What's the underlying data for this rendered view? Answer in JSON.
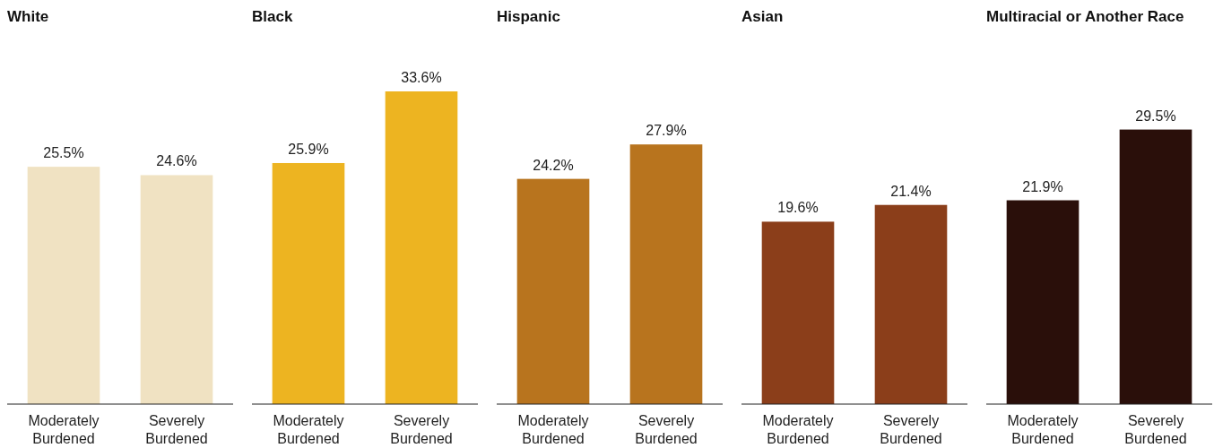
{
  "chart_data": [
    {
      "type": "bar",
      "title": "White",
      "categories": [
        "Moderately Burdened",
        "Severely Burdened"
      ],
      "values": [
        25.5,
        24.6
      ],
      "color": "#f0e2c2",
      "value_labels": [
        "25.5%",
        "24.6%"
      ]
    },
    {
      "type": "bar",
      "title": "Black",
      "categories": [
        "Moderately Burdened",
        "Severely Burdened"
      ],
      "values": [
        25.9,
        33.6
      ],
      "color": "#edb421",
      "value_labels": [
        "25.9%",
        "33.6%"
      ]
    },
    {
      "type": "bar",
      "title": "Hispanic",
      "categories": [
        "Moderately Burdened",
        "Severely Burdened"
      ],
      "values": [
        24.2,
        27.9
      ],
      "color": "#b8741e",
      "value_labels": [
        "24.2%",
        "27.9%"
      ]
    },
    {
      "type": "bar",
      "title": "Asian",
      "categories": [
        "Moderately Burdened",
        "Severely Burdened"
      ],
      "values": [
        19.6,
        21.4
      ],
      "color": "#8b3e1a",
      "value_labels": [
        "19.6%",
        "21.4%"
      ]
    },
    {
      "type": "bar",
      "title": "Multiracial or Another Race",
      "categories": [
        "Moderately Burdened",
        "Severely Burdened"
      ],
      "values": [
        21.9,
        29.5
      ],
      "color": "#2a0f0a",
      "value_labels": [
        "21.9%",
        "29.5%"
      ]
    }
  ]
}
